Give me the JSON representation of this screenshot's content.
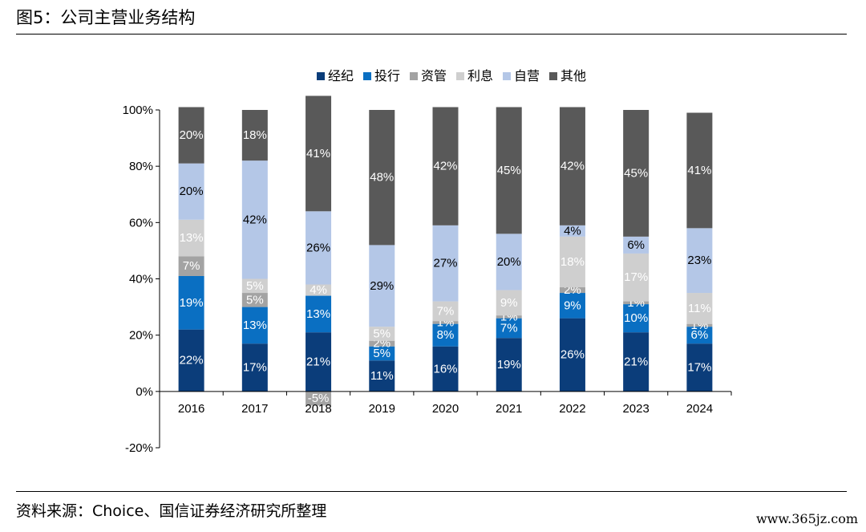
{
  "figure": {
    "title": "图5：公司主营业务结构",
    "source": "资料来源：Choice、国信证券经济研究所整理",
    "watermark": "www.365jz.com"
  },
  "chart_data": {
    "type": "bar",
    "stacked": true,
    "categories": [
      "2016",
      "2017",
      "2018",
      "2019",
      "2020",
      "2021",
      "2022",
      "2023",
      "2024"
    ],
    "ylim": [
      -20,
      100
    ],
    "yticks": [
      "-20%",
      "0%",
      "20%",
      "40%",
      "60%",
      "80%",
      "100%"
    ],
    "ytick_values": [
      -20,
      0,
      20,
      40,
      60,
      80,
      100
    ],
    "legend_position": "top",
    "grid": false,
    "series": [
      {
        "name": "经纪",
        "color": "#0b3d7a",
        "label_color": "#ffffff",
        "values": [
          22,
          17,
          21,
          11,
          16,
          19,
          26,
          21,
          17
        ],
        "labels": [
          "22%",
          "17%",
          "21%",
          "11%",
          "16%",
          "19%",
          "26%",
          "21%",
          "17%"
        ]
      },
      {
        "name": "投行",
        "color": "#0a6fc2",
        "label_color": "#ffffff",
        "values": [
          19,
          13,
          13,
          5,
          8,
          7,
          9,
          10,
          6
        ],
        "labels": [
          "19%",
          "13%",
          "13%",
          "5%",
          "8%",
          "7%",
          "9%",
          "10%",
          "6%"
        ]
      },
      {
        "name": "资管",
        "color": "#a3a3a3",
        "label_color": "#ffffff",
        "values": [
          7,
          5,
          -5,
          2,
          1,
          1,
          2,
          1,
          1
        ],
        "labels": [
          "7%",
          "5%",
          "-5%",
          "2%",
          "1%",
          "1%",
          "2%",
          "1%",
          "1%"
        ]
      },
      {
        "name": "利息",
        "color": "#cfcfcf",
        "label_color": "#ffffff",
        "values": [
          13,
          5,
          4,
          5,
          7,
          9,
          18,
          17,
          11
        ],
        "labels": [
          "13%",
          "5%",
          "4%",
          "5%",
          "7%",
          "9%",
          "18%",
          "17%",
          "11%"
        ]
      },
      {
        "name": "自营",
        "color": "#b4c7e7",
        "label_color": "#000000",
        "values": [
          20,
          42,
          26,
          29,
          27,
          20,
          4,
          6,
          23
        ],
        "labels": [
          "20%",
          "42%",
          "26%",
          "29%",
          "27%",
          "20%",
          "4%",
          "6%",
          "23%"
        ]
      },
      {
        "name": "其他",
        "color": "#595959",
        "label_color": "#ffffff",
        "values": [
          20,
          18,
          41,
          48,
          42,
          45,
          42,
          45,
          41
        ],
        "labels": [
          "20%",
          "18%",
          "41%",
          "48%",
          "42%",
          "45%",
          "42%",
          "45%",
          "41%"
        ]
      }
    ]
  }
}
